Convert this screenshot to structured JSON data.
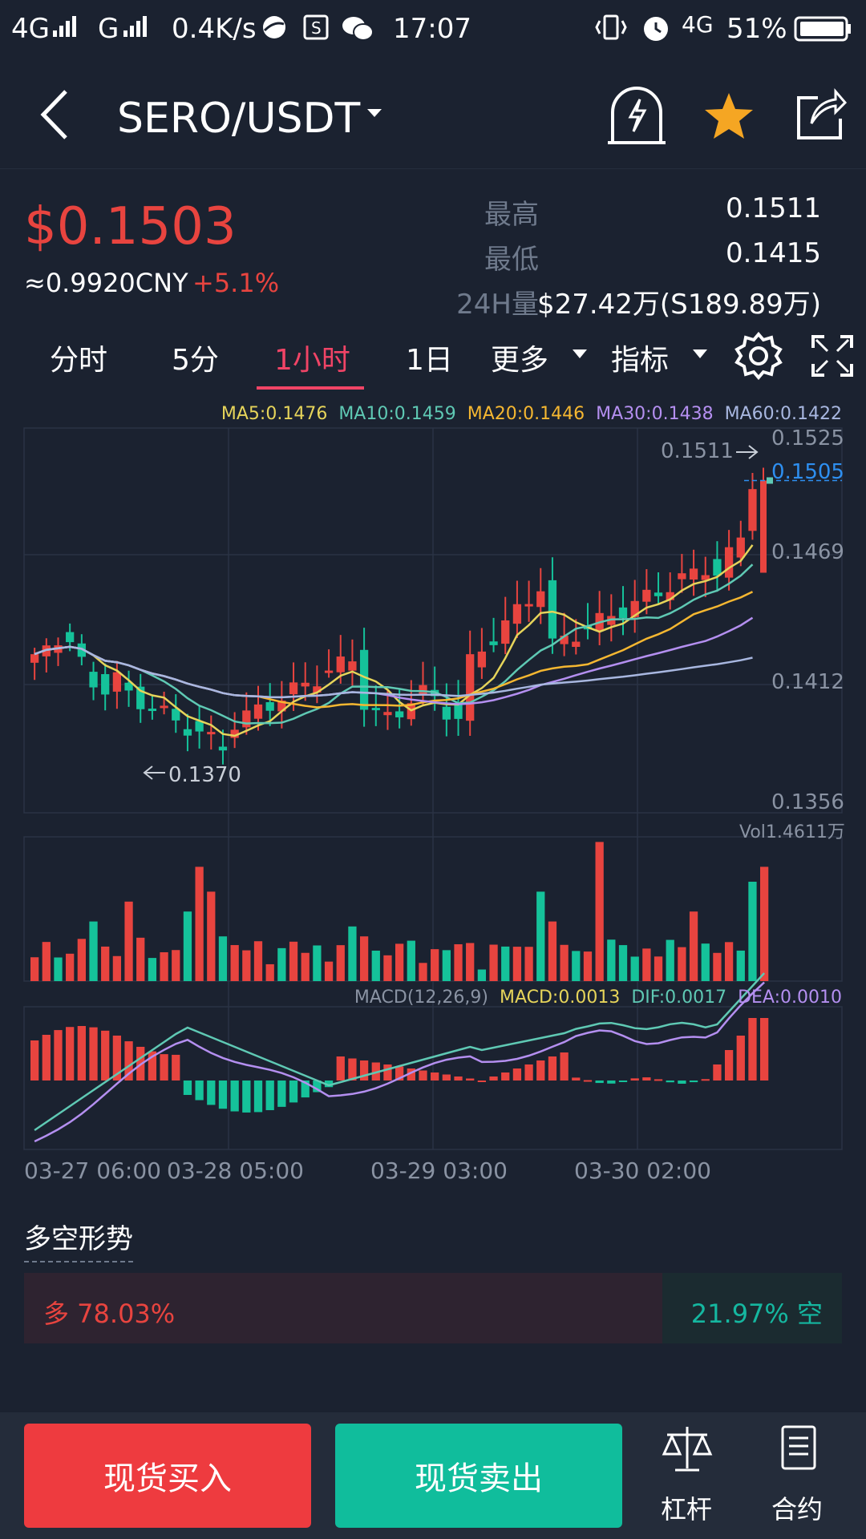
{
  "status_bar": {
    "network_left": "4G",
    "network_mid": "G",
    "speed": "0.4K/s",
    "time": "17:07",
    "network_right": "4G",
    "battery": "51%"
  },
  "header": {
    "pair": "SERO/USDT",
    "back_icon": "back-arrow-icon",
    "icons": [
      "alert-bell-icon",
      "star-icon",
      "share-icon"
    ],
    "star_color": "#f5a623"
  },
  "ticker": {
    "price": "$0.1503",
    "cny": "≈0.9920CNY",
    "change": "+5.1%",
    "stats": [
      {
        "label": "最高",
        "value": "0.1511"
      },
      {
        "label": "最低",
        "value": "0.1415"
      },
      {
        "label": "24H量",
        "value": "$27.42万(S189.89万)"
      }
    ]
  },
  "tabs": {
    "items": [
      "分时",
      "5分",
      "1小时",
      "1日",
      "更多",
      "指标"
    ],
    "active": "1小时"
  },
  "chart": {
    "ma_legend": [
      {
        "label": "MA5:0.1476",
        "color": "#e6d45a"
      },
      {
        "label": "MA10:0.1459",
        "color": "#5fc9b4"
      },
      {
        "label": "MA20:0.1446",
        "color": "#f5b731"
      },
      {
        "label": "MA30:0.1438",
        "color": "#b48ff0"
      },
      {
        "label": "MA60:0.1422",
        "color": "#a8b7e0"
      }
    ],
    "price_axis": [
      "0.1525",
      "0.1469",
      "0.1412",
      "0.1356"
    ],
    "current_price": "0.1505",
    "high_marker": "0.1511",
    "low_marker": "0.1370",
    "volume_label": "Vol1.4611万",
    "macd_legend": [
      {
        "label": "MACD(12,26,9)",
        "color": "#8a93a3"
      },
      {
        "label": "MACD:0.0013",
        "color": "#e6d45a"
      },
      {
        "label": "DIF:0.0017",
        "color": "#5fc9b4"
      },
      {
        "label": "DEA:0.0010",
        "color": "#b48ff0"
      }
    ],
    "dates": [
      "03-27 06:00",
      "03-28 05:00",
      "03-29 03:00",
      "03-30 02:00"
    ],
    "up_color": "#e8443f",
    "down_color": "#15c29a"
  },
  "sentiment": {
    "title": "多空形势",
    "bull": "多 78.03%",
    "bear": "21.97% 空",
    "bull_fraction": 0.7803
  },
  "bottom": {
    "buy_label": "现货买入",
    "sell_label": "现货卖出",
    "buy_color": "#ee3b3f",
    "sell_color": "#10bd9c",
    "nav": [
      {
        "label": "杠杆",
        "icon": "scale-icon"
      },
      {
        "label": "合约",
        "icon": "document-icon"
      }
    ]
  }
}
